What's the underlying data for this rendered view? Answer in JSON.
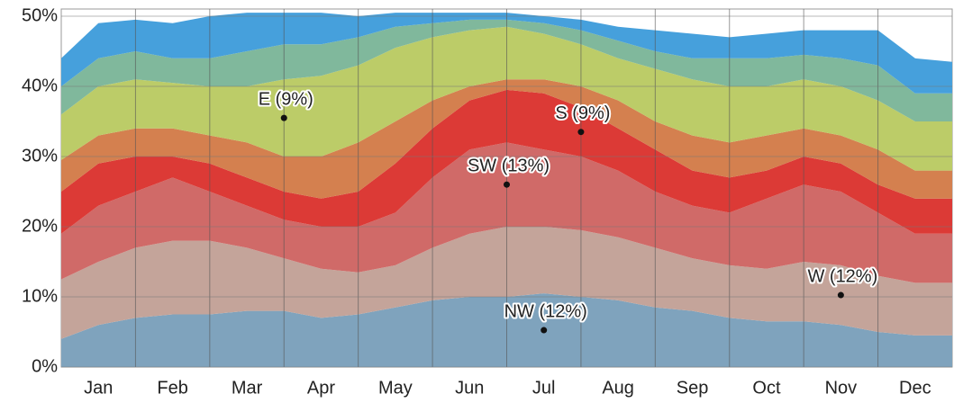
{
  "chart_data": {
    "type": "stacked_area",
    "categories": [
      null,
      "Jan",
      null,
      "Feb",
      null,
      "Mar",
      null,
      "Apr",
      null,
      "May",
      null,
      "Jun",
      null,
      "Jul",
      null,
      "Aug",
      null,
      "Sep",
      null,
      "Oct",
      null,
      "Nov",
      null,
      "Dec",
      null
    ],
    "series": [
      {
        "name": "NW (12%)",
        "color": "#7fa3bd",
        "values": [
          4,
          6,
          7,
          7.5,
          7.5,
          8,
          8,
          7,
          7.5,
          8.5,
          9.5,
          10,
          10,
          10.5,
          10,
          9.5,
          8.5,
          8,
          7,
          6.5,
          6.5,
          6,
          5,
          4.5,
          4.5
        ]
      },
      {
        "name": "W (12%)",
        "color": "#c4a49a",
        "values": [
          8.5,
          9,
          10,
          10.5,
          10.5,
          9,
          7.5,
          7,
          6,
          6,
          7.5,
          9,
          10,
          9.5,
          9.5,
          9,
          8.5,
          7.5,
          7.5,
          7.5,
          8.5,
          8.5,
          8,
          7.5,
          7.5
        ]
      },
      {
        "name": "SW (13%)",
        "color": "#d06a68",
        "values": [
          6.5,
          8,
          8,
          9,
          7,
          6,
          5.5,
          6,
          6.5,
          7.5,
          10,
          12,
          12,
          11,
          10.5,
          9.5,
          8,
          7.5,
          7.5,
          10,
          11,
          10.5,
          9,
          7,
          7
        ]
      },
      {
        "name": "S (9%)",
        "color": "#dc3a36",
        "values": [
          6,
          6,
          5,
          3,
          4,
          4,
          4,
          4,
          5,
          7,
          7,
          7,
          7.5,
          8,
          7,
          6,
          6,
          5,
          5,
          4,
          4,
          4,
          4,
          5,
          5
        ]
      },
      {
        "name": null,
        "color": "#d4804f",
        "values": [
          4.5,
          4,
          4,
          4,
          4,
          5,
          5,
          6,
          7,
          6,
          4,
          2,
          1.5,
          2,
          3,
          4,
          4,
          5,
          5,
          5,
          4,
          4,
          5,
          4,
          4
        ]
      },
      {
        "name": "E (9%)",
        "color": "#bccc68",
        "values": [
          6.5,
          7,
          7,
          6.5,
          7,
          8,
          11,
          11.5,
          11,
          10.5,
          9,
          8,
          7.5,
          6.5,
          6,
          6,
          7.5,
          8,
          8,
          7,
          7,
          7,
          7,
          7,
          7
        ]
      },
      {
        "name": null,
        "color": "#80b89c",
        "values": [
          4,
          4,
          4,
          3.5,
          4,
          5,
          5,
          4.5,
          4,
          3,
          2,
          1.5,
          1,
          1.5,
          2,
          2.5,
          2.5,
          3,
          4,
          4,
          3.5,
          4,
          5,
          4,
          4
        ]
      },
      {
        "name": null,
        "color": "#46a0dc",
        "values": [
          4,
          5,
          4.5,
          5,
          6,
          5.5,
          4.5,
          4.5,
          3,
          2,
          1.5,
          1,
          1,
          1,
          1.5,
          2,
          3,
          3.5,
          3,
          3.5,
          3.5,
          4,
          5,
          5,
          4.5
        ]
      }
    ],
    "ylim": [
      0,
      50
    ],
    "yticks": [
      {
        "value": 0,
        "label": "0%"
      },
      {
        "value": 10,
        "label": "10%"
      },
      {
        "value": 20,
        "label": "20%"
      },
      {
        "value": 30,
        "label": "30%"
      },
      {
        "value": 40,
        "label": "40%"
      },
      {
        "value": 50,
        "label": "50%"
      }
    ],
    "grid": true
  }
}
